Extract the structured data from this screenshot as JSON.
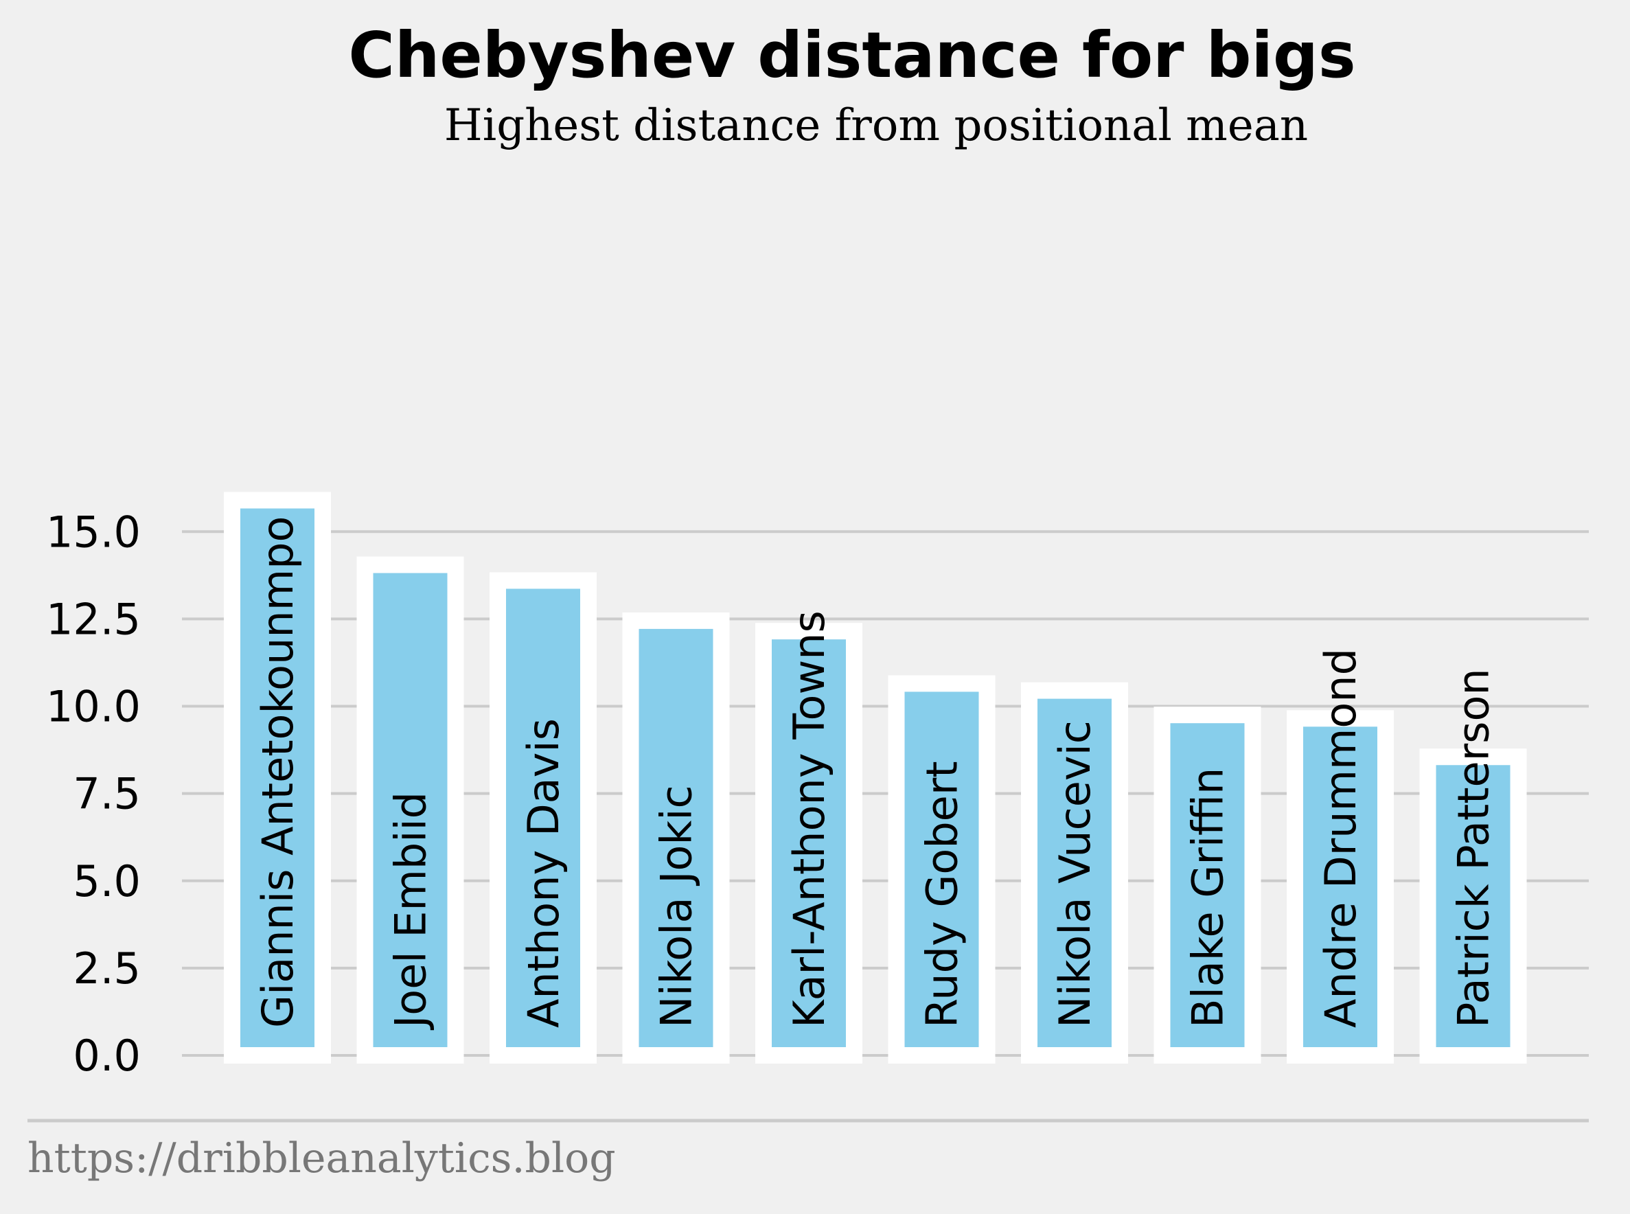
{
  "colors": {
    "background": "#f0f0f0",
    "bar_fill": "#87ceeb",
    "bar_edge": "#ffffff",
    "grid": "#cbcbcb",
    "source_text": "#777777"
  },
  "source": "https://dribbleanalytics.blog",
  "chart_data": {
    "type": "bar",
    "title": "Chebyshev distance for bigs",
    "subtitle": "Highest distance from positional mean",
    "xlabel": "",
    "ylabel": "",
    "categories": [
      "Giannis Antetokounmpo",
      "Joel Embiid",
      "Anthony Davis",
      "Nikola Jokic",
      "Karl-Anthony Towns",
      "Rudy Gobert",
      "Nikola Vucevic",
      "Blake Griffin",
      "Andre Drummond",
      "Patrick Patterson"
    ],
    "values": [
      15.9,
      14.05,
      13.6,
      12.45,
      12.15,
      10.65,
      10.45,
      9.75,
      9.65,
      8.55
    ],
    "ylim": [
      0,
      16.5
    ],
    "yticks": [
      "0.0",
      "2.5",
      "5.0",
      "7.5",
      "10.0",
      "12.5",
      "15.0"
    ],
    "grid": "horizontal",
    "labels_inside_bars": true
  }
}
